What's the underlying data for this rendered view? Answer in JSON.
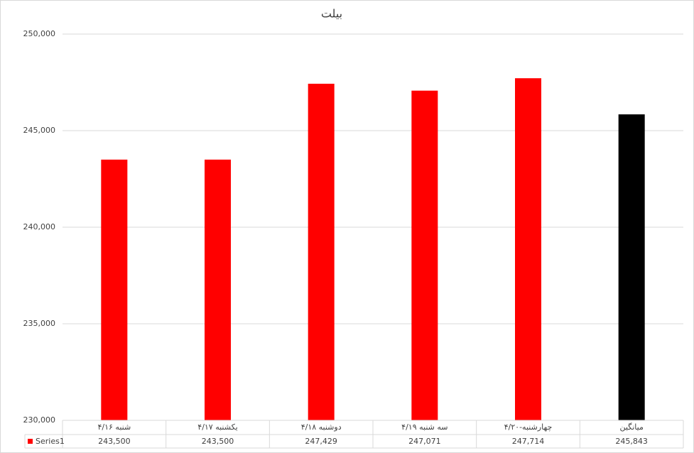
{
  "chart_data": {
    "type": "bar",
    "title": "بیلت",
    "categories": [
      "شنبه ۴/۱۶",
      "یکشنبه ۴/۱۷",
      "دوشنبه ۴/۱۸",
      "سه شنبه ۴/۱۹",
      "چهارشنبه-۴/۲۰",
      "میانگین"
    ],
    "series": [
      {
        "name": "Series1",
        "color": "#ff0000",
        "colors": [
          "#ff0000",
          "#ff0000",
          "#ff0000",
          "#ff0000",
          "#ff0000",
          "#000000"
        ],
        "values": [
          243500,
          243500,
          247429,
          247071,
          247714,
          245843
        ],
        "value_labels": [
          "243,500",
          "243,500",
          "247,429",
          "247,071",
          "247,714",
          "245,843"
        ]
      }
    ],
    "ylim": [
      230000,
      250000
    ],
    "yticks": [
      {
        "value": 230000,
        "label": "230,000"
      },
      {
        "value": 235000,
        "label": "235,000"
      },
      {
        "value": 240000,
        "label": "240,000"
      },
      {
        "value": 245000,
        "label": "245,000"
      },
      {
        "value": 250000,
        "label": "250,000"
      }
    ],
    "grid": true,
    "data_table": true
  }
}
